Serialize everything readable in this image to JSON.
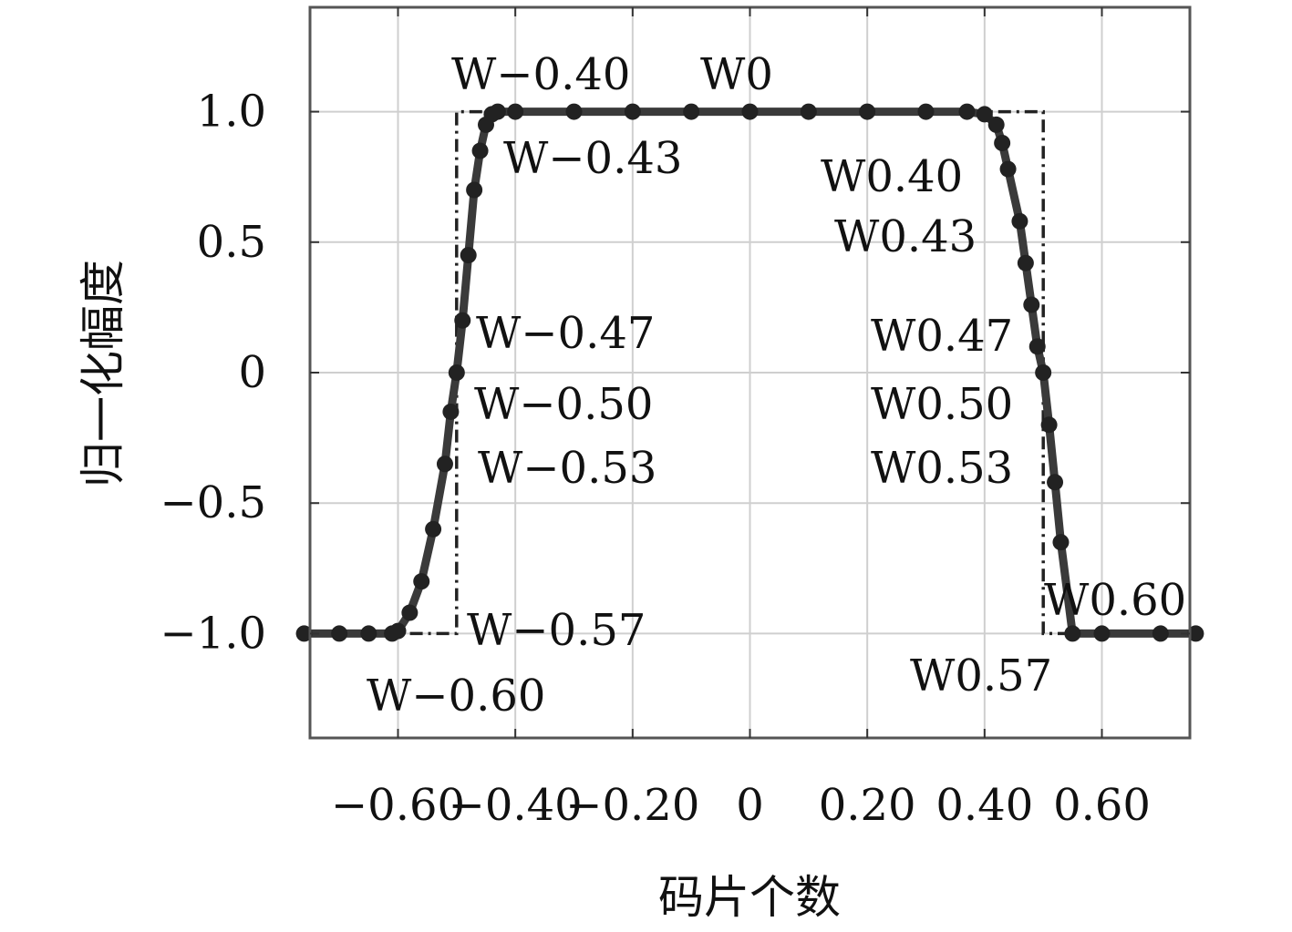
{
  "chart_data": {
    "type": "line",
    "title": "",
    "xlabel": "码片个数",
    "ylabel": "归一化幅度",
    "xlim": [
      -0.75,
      0.75
    ],
    "ylim": [
      -1.4,
      1.4
    ],
    "grid": true,
    "xticks": [
      {
        "value": -0.6,
        "label": "−0.60"
      },
      {
        "value": -0.4,
        "label": "−0.40"
      },
      {
        "value": -0.2,
        "label": "−0.20"
      },
      {
        "value": 0,
        "label": "0"
      },
      {
        "value": 0.2,
        "label": "0.20"
      },
      {
        "value": 0.4,
        "label": "0.40"
      },
      {
        "value": 0.6,
        "label": "0.60"
      }
    ],
    "yticks": [
      {
        "value": 1.0,
        "label": "1.0"
      },
      {
        "value": 0.5,
        "label": "0.5"
      },
      {
        "value": 0,
        "label": "0"
      },
      {
        "value": -0.5,
        "label": "−0.5"
      },
      {
        "value": -1.0,
        "label": "−1.0"
      }
    ],
    "series": [
      {
        "style": "dashdot",
        "x": [
          -0.76,
          -0.5,
          -0.5,
          0.5,
          0.5,
          0.76
        ],
        "y": [
          -1.0,
          -1.0,
          1.0,
          1.0,
          -1.0,
          -1.0
        ]
      },
      {
        "style": "solid-with-markers",
        "x": [
          -0.76,
          -0.7,
          -0.65,
          -0.61,
          -0.6,
          -0.58,
          -0.56,
          -0.54,
          -0.52,
          -0.51,
          -0.5,
          -0.49,
          -0.48,
          -0.47,
          -0.46,
          -0.45,
          -0.44,
          -0.43,
          -0.4,
          -0.3,
          -0.2,
          -0.1,
          0,
          0.1,
          0.2,
          0.3,
          0.37,
          0.4,
          0.42,
          0.43,
          0.44,
          0.46,
          0.47,
          0.48,
          0.49,
          0.5,
          0.51,
          0.52,
          0.53,
          0.55,
          0.6,
          0.7,
          0.76
        ],
        "y": [
          -1.0,
          -1.0,
          -1.0,
          -1.0,
          -0.99,
          -0.92,
          -0.8,
          -0.6,
          -0.35,
          -0.15,
          0.0,
          0.2,
          0.45,
          0.7,
          0.85,
          0.95,
          0.99,
          1.0,
          1.0,
          1.0,
          1.0,
          1.0,
          1.0,
          1.0,
          1.0,
          1.0,
          1.0,
          0.99,
          0.95,
          0.88,
          0.78,
          0.58,
          0.42,
          0.26,
          0.1,
          0.0,
          -0.2,
          -0.42,
          -0.65,
          -1.0,
          -1.0,
          -1.0,
          -1.0
        ]
      }
    ],
    "annotations": [
      {
        "text": "W−0.40",
        "x": -0.4,
        "y": 1.0
      },
      {
        "text": "W−0.43",
        "x": -0.43,
        "y": 0.9
      },
      {
        "text": "W−0.47",
        "x": -0.47,
        "y": 0.2
      },
      {
        "text": "W−0.50",
        "x": -0.5,
        "y": 0.0
      },
      {
        "text": "W−0.53",
        "x": -0.53,
        "y": -0.35
      },
      {
        "text": "W−0.57",
        "x": -0.57,
        "y": -1.0
      },
      {
        "text": "W−0.60",
        "x": -0.6,
        "y": -1.0
      },
      {
        "text": "W0",
        "x": 0,
        "y": 1.0
      },
      {
        "text": "W0.40",
        "x": 0.4,
        "y": 0.99
      },
      {
        "text": "W0.43",
        "x": 0.43,
        "y": 0.88
      },
      {
        "text": "W0.47",
        "x": 0.47,
        "y": 0.42
      },
      {
        "text": "W0.50",
        "x": 0.5,
        "y": 0.0
      },
      {
        "text": "W0.53",
        "x": 0.53,
        "y": -0.65
      },
      {
        "text": "W0.57",
        "x": 0.57,
        "y": -1.0
      },
      {
        "text": "W0.60",
        "x": 0.6,
        "y": -1.0
      }
    ]
  }
}
